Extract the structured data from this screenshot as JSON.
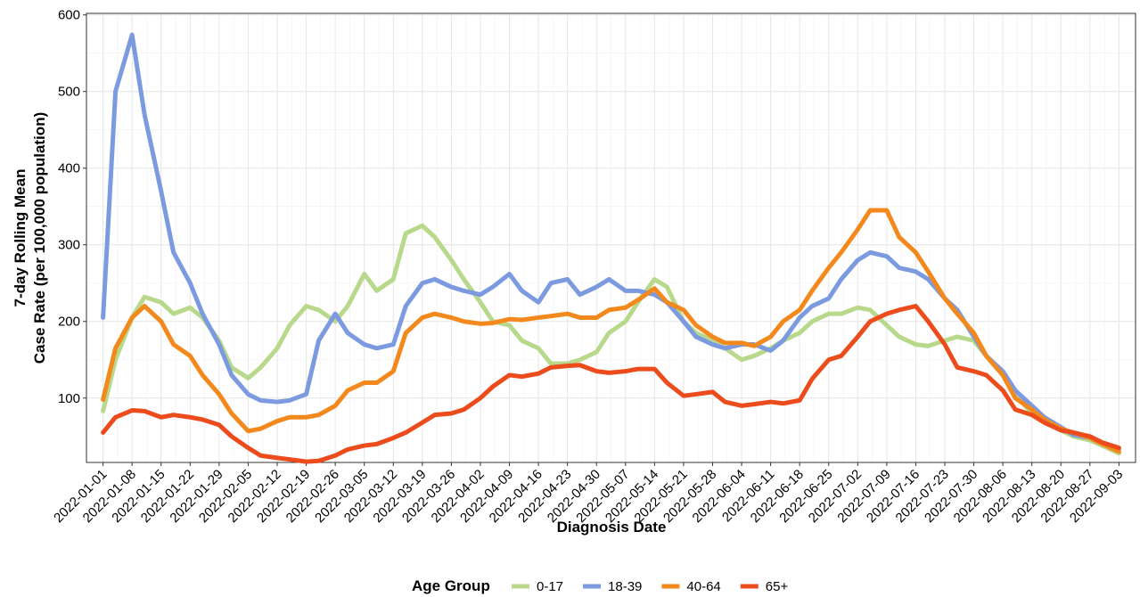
{
  "chart_data": {
    "type": "line",
    "y_label": [
      "7-day Rolling Mean",
      "Case Rate (per 100,000 population)"
    ],
    "x_label": "Diagnosis Date",
    "legend_title": "Age Group",
    "legend_position": "bottom",
    "grid": true,
    "x": [
      "2022-01-01",
      "2022-01-04",
      "2022-01-08",
      "2022-01-11",
      "2022-01-15",
      "2022-01-18",
      "2022-01-22",
      "2022-01-25",
      "2022-01-29",
      "2022-02-01",
      "2022-02-05",
      "2022-02-08",
      "2022-02-12",
      "2022-02-15",
      "2022-02-19",
      "2022-02-22",
      "2022-02-26",
      "2022-03-01",
      "2022-03-05",
      "2022-03-08",
      "2022-03-12",
      "2022-03-15",
      "2022-03-19",
      "2022-03-22",
      "2022-03-26",
      "2022-03-29",
      "2022-04-02",
      "2022-04-05",
      "2022-04-09",
      "2022-04-12",
      "2022-04-16",
      "2022-04-19",
      "2022-04-23",
      "2022-04-26",
      "2022-04-30",
      "2022-05-03",
      "2022-05-07",
      "2022-05-10",
      "2022-05-14",
      "2022-05-17",
      "2022-05-21",
      "2022-05-24",
      "2022-05-28",
      "2022-05-31",
      "2022-06-04",
      "2022-06-07",
      "2022-06-11",
      "2022-06-14",
      "2022-06-18",
      "2022-06-21",
      "2022-06-25",
      "2022-06-28",
      "2022-07-02",
      "2022-07-05",
      "2022-07-09",
      "2022-07-12",
      "2022-07-16",
      "2022-07-19",
      "2022-07-23",
      "2022-07-26",
      "2022-07-30",
      "2022-08-02",
      "2022-08-06",
      "2022-08-09",
      "2022-08-13",
      "2022-08-16",
      "2022-08-20",
      "2022-08-23",
      "2022-08-27",
      "2022-08-30",
      "2022-09-03"
    ],
    "series": [
      {
        "name": "0-17",
        "color": "#b8d98c",
        "values": [
          83,
          150,
          205,
          232,
          225,
          210,
          218,
          205,
          175,
          140,
          126,
          140,
          165,
          195,
          220,
          215,
          200,
          220,
          262,
          240,
          255,
          315,
          325,
          310,
          280,
          255,
          225,
          200,
          195,
          175,
          165,
          145,
          145,
          150,
          160,
          185,
          200,
          225,
          255,
          245,
          200,
          185,
          175,
          165,
          150,
          155,
          165,
          175,
          185,
          200,
          210,
          210,
          218,
          215,
          195,
          180,
          170,
          168,
          175,
          180,
          175,
          155,
          130,
          105,
          80,
          70,
          58,
          50,
          45,
          38,
          28
        ]
      },
      {
        "name": "18-39",
        "color": "#7b9ae0",
        "values": [
          205,
          500,
          574,
          470,
          370,
          290,
          250,
          210,
          170,
          130,
          105,
          97,
          95,
          97,
          105,
          175,
          210,
          185,
          170,
          165,
          170,
          220,
          250,
          255,
          245,
          240,
          235,
          245,
          262,
          240,
          225,
          250,
          255,
          235,
          245,
          255,
          240,
          240,
          235,
          225,
          200,
          180,
          170,
          165,
          170,
          170,
          162,
          175,
          205,
          220,
          230,
          255,
          280,
          290,
          285,
          270,
          265,
          255,
          230,
          215,
          180,
          155,
          135,
          110,
          90,
          75,
          62,
          52,
          48,
          40,
          33
        ]
      },
      {
        "name": "40-64",
        "color": "#f3891d",
        "values": [
          98,
          165,
          205,
          220,
          200,
          170,
          155,
          130,
          105,
          80,
          57,
          60,
          70,
          75,
          75,
          78,
          90,
          110,
          120,
          120,
          135,
          185,
          205,
          210,
          205,
          200,
          197,
          198,
          203,
          202,
          205,
          207,
          210,
          205,
          205,
          215,
          218,
          228,
          243,
          225,
          215,
          195,
          180,
          172,
          172,
          168,
          180,
          200,
          215,
          240,
          270,
          290,
          320,
          345,
          345,
          310,
          290,
          265,
          230,
          210,
          185,
          155,
          130,
          100,
          85,
          72,
          60,
          55,
          48,
          40,
          30
        ]
      },
      {
        "name": "65+",
        "color": "#ec4b1b",
        "values": [
          55,
          75,
          84,
          83,
          75,
          78,
          75,
          72,
          65,
          50,
          35,
          25,
          22,
          20,
          17,
          18,
          25,
          33,
          38,
          40,
          48,
          55,
          68,
          78,
          80,
          85,
          100,
          115,
          130,
          128,
          132,
          140,
          142,
          143,
          135,
          133,
          135,
          138,
          138,
          120,
          103,
          105,
          108,
          95,
          90,
          92,
          95,
          93,
          97,
          125,
          150,
          155,
          180,
          200,
          210,
          215,
          220,
          200,
          170,
          140,
          135,
          130,
          110,
          85,
          78,
          68,
          58,
          55,
          50,
          42,
          35
        ]
      }
    ],
    "xlim": [
      "2021-12-28",
      "2022-09-07"
    ],
    "xticks": [
      "2022-01-01",
      "2022-01-08",
      "2022-01-15",
      "2022-01-22",
      "2022-01-29",
      "2022-02-05",
      "2022-02-12",
      "2022-02-19",
      "2022-02-26",
      "2022-03-05",
      "2022-03-12",
      "2022-03-19",
      "2022-03-26",
      "2022-04-02",
      "2022-04-09",
      "2022-04-16",
      "2022-04-23",
      "2022-04-30",
      "2022-05-07",
      "2022-05-14",
      "2022-05-21",
      "2022-05-28",
      "2022-06-04",
      "2022-06-11",
      "2022-06-18",
      "2022-06-25",
      "2022-07-02",
      "2022-07-09",
      "2022-07-16",
      "2022-07-23",
      "2022-07-30",
      "2022-08-06",
      "2022-08-13",
      "2022-08-20",
      "2022-08-27",
      "2022-09-03"
    ],
    "ylim": [
      16,
      602
    ],
    "yticks": [
      100,
      200,
      300,
      400,
      500,
      600
    ]
  }
}
